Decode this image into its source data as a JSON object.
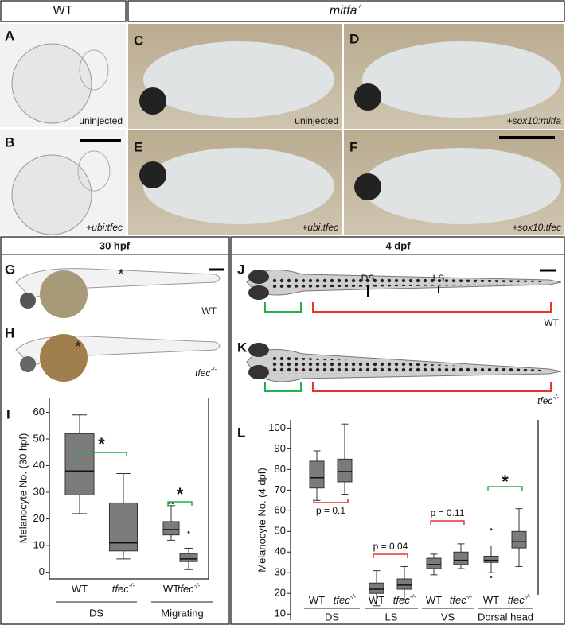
{
  "header": {
    "wt": "WT",
    "mutant": {
      "text": "mitfa",
      "sup": "-/-"
    }
  },
  "panels": {
    "A": {
      "label": "A",
      "caption": "uninjected"
    },
    "B": {
      "label": "B",
      "caption": "+ubi:tfec"
    },
    "C": {
      "label": "C",
      "caption": "uninjected"
    },
    "D": {
      "label": "D",
      "caption": "+sox10:mitfa"
    },
    "E": {
      "label": "E",
      "caption": "+ubi:tfec"
    },
    "F": {
      "label": "F",
      "caption": "+sox10:tfec"
    },
    "G": {
      "label": "G",
      "caption": "WT",
      "mark": "*"
    },
    "H": {
      "label": "H",
      "caption": {
        "text": "tfec",
        "sup": "-/-"
      },
      "mark": "*"
    },
    "J": {
      "label": "J",
      "caption": "WT",
      "stripes": [
        "DS",
        "LS"
      ]
    },
    "K": {
      "label": "K",
      "caption": {
        "text": "tfec",
        "sup": "-/-"
      }
    }
  },
  "sections": {
    "left": "30 hpf",
    "right": "4 dpf"
  },
  "chart_data": [
    {
      "type": "box",
      "panel_label": "I",
      "y_label": "Melanocyte No. (30 hpf)",
      "ylim": [
        -2.5,
        65.5
      ],
      "yticks": [
        0,
        10,
        20,
        30,
        40,
        50,
        60
      ],
      "color": "#7b7b7b",
      "categories": [
        {
          "label": "WT"
        },
        {
          "label": "tfec",
          "sup": "-/-",
          "italic": true
        },
        {
          "label": "WT"
        },
        {
          "label": "tfec",
          "sup": "-/-",
          "italic": true
        }
      ],
      "groups": [
        "DS",
        "Migrating"
      ],
      "boxes": [
        {
          "min": 22,
          "q1": 29,
          "median": 38,
          "q3": 52,
          "max": 59,
          "outliers": []
        },
        {
          "min": 5,
          "q1": 8,
          "median": 11,
          "q3": 26,
          "max": 37,
          "outliers": []
        },
        {
          "min": 12,
          "q1": 14,
          "median": 16,
          "q3": 19,
          "max": 25,
          "outliers": [
            26,
            26
          ]
        },
        {
          "min": 1,
          "q1": 4,
          "median": 5,
          "q3": 7,
          "max": 9,
          "outliers": [
            15
          ]
        }
      ],
      "annotations": [
        {
          "text": "*",
          "color": "#22b14c"
        },
        {
          "text": "*",
          "color": "#22b14c"
        }
      ]
    },
    {
      "type": "box",
      "panel_label": "L",
      "y_label": "Melanocyte No. (4 dpf)",
      "ylim": [
        7,
        104
      ],
      "yticks": [
        10,
        20,
        30,
        40,
        50,
        60,
        70,
        80,
        90,
        100
      ],
      "color": "#7b7b7b",
      "categories": [
        {
          "label": "WT"
        },
        {
          "label": "tfec",
          "sup": "-/-",
          "italic": true
        },
        {
          "label": "WT"
        },
        {
          "label": "tfec",
          "sup": "-/-",
          "italic": true
        },
        {
          "label": "WT"
        },
        {
          "label": "tfec",
          "sup": "-/-",
          "italic": true
        },
        {
          "label": "WT"
        },
        {
          "label": "tfec",
          "sup": "-/-",
          "italic": true
        }
      ],
      "groups": [
        "DS",
        "LS",
        "VS",
        "Dorsal head"
      ],
      "boxes": [
        {
          "min": 65,
          "q1": 71,
          "median": 76,
          "q3": 84,
          "max": 89,
          "outliers": []
        },
        {
          "min": 68,
          "q1": 74,
          "median": 79,
          "q3": 85,
          "max": 102,
          "outliers": []
        },
        {
          "min": 14,
          "q1": 20,
          "median": 22,
          "q3": 25,
          "max": 31,
          "outliers": []
        },
        {
          "min": 17,
          "q1": 22,
          "median": 24,
          "q3": 27,
          "max": 33,
          "outliers": []
        },
        {
          "min": 29,
          "q1": 32,
          "median": 34,
          "q3": 37,
          "max": 39,
          "outliers": []
        },
        {
          "min": 32,
          "q1": 34,
          "median": 36,
          "q3": 40,
          "max": 44,
          "outliers": []
        },
        {
          "min": 30,
          "q1": 35,
          "median": 36,
          "q3": 38,
          "max": 43,
          "outliers": [
            51,
            28
          ]
        },
        {
          "min": 33,
          "q1": 42,
          "median": 45,
          "q3": 50,
          "max": 61,
          "outliers": []
        }
      ],
      "annotations": [
        {
          "text": "p = 0.1",
          "color": "#e8312f"
        },
        {
          "text": "p = 0.04",
          "color": "#e8312f"
        },
        {
          "text": "p = 0.11",
          "color": "#e8312f"
        },
        {
          "text": "*",
          "color": "#22b14c"
        }
      ]
    }
  ]
}
